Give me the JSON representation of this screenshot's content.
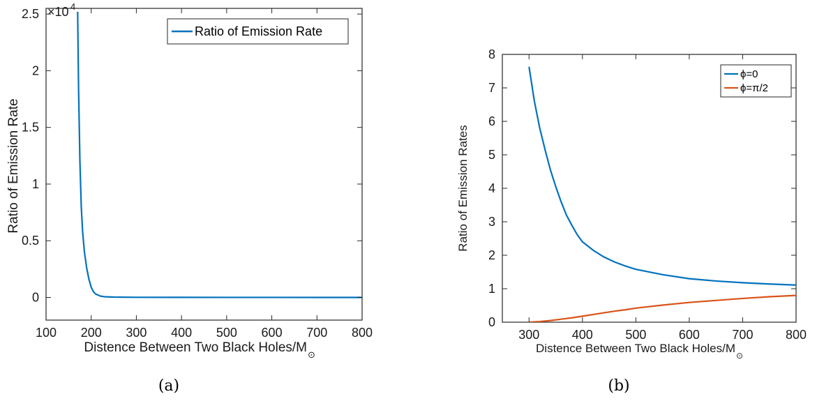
{
  "chart_data": [
    {
      "type": "line",
      "panel_caption": "(a)",
      "xlabel": "Distence Between Two Black Holes/M",
      "xlabel_sub": "⊙",
      "ylabel": "Ratio of Emission Rate",
      "exponent_label": "×10",
      "exponent_power": "4",
      "xlim": [
        100,
        800
      ],
      "ylim": [
        -0.2,
        2.55
      ],
      "xticks": [
        100,
        200,
        300,
        400,
        500,
        600,
        700,
        800
      ],
      "yticks": [
        0,
        0.5,
        1,
        1.5,
        2,
        2.5
      ],
      "xtick_labels": [
        "100",
        "200",
        "300",
        "400",
        "500",
        "600",
        "700",
        "800"
      ],
      "ytick_labels": [
        "0",
        "0.5",
        "1",
        "1.5",
        "2",
        "2.5"
      ],
      "legend_position": "top-right",
      "grid": false,
      "series": [
        {
          "name": "Ratio of Emission Rate",
          "color": "#0072BD",
          "x": [
            170,
            172,
            175,
            178,
            181,
            185,
            190,
            195,
            200,
            205,
            210,
            220,
            230,
            250,
            300,
            400,
            500,
            600,
            700,
            800
          ],
          "y": [
            2.52,
            1.85,
            1.2,
            0.8,
            0.58,
            0.4,
            0.26,
            0.16,
            0.09,
            0.05,
            0.03,
            0.012,
            0.006,
            0.003,
            0.001,
            0.0005,
            0.0003,
            0.0002,
            0.0001,
            0.0001
          ]
        }
      ]
    },
    {
      "type": "line",
      "panel_caption": "(b)",
      "xlabel": "Distence Between Two Black Holes/M",
      "xlabel_sub": "⊙",
      "ylabel": "Ratio of Emission Rates",
      "xlim": [
        250,
        800
      ],
      "ylim": [
        0,
        8
      ],
      "xticks": [
        300,
        400,
        500,
        600,
        700,
        800
      ],
      "yticks": [
        0,
        1,
        2,
        3,
        4,
        5,
        6,
        7,
        8
      ],
      "xtick_labels": [
        "300",
        "400",
        "500",
        "600",
        "700",
        "800"
      ],
      "ytick_labels": [
        "0",
        "1",
        "2",
        "3",
        "4",
        "5",
        "6",
        "7",
        "8"
      ],
      "legend_position": "top-right",
      "grid": false,
      "series": [
        {
          "name": "ϕ=0",
          "color": "#0072BD",
          "x": [
            300,
            310,
            320,
            330,
            340,
            350,
            360,
            370,
            380,
            390,
            400,
            420,
            440,
            460,
            480,
            500,
            550,
            600,
            650,
            700,
            750,
            800
          ],
          "y": [
            7.63,
            6.6,
            5.8,
            5.15,
            4.55,
            4.05,
            3.6,
            3.2,
            2.9,
            2.62,
            2.4,
            2.15,
            1.95,
            1.8,
            1.68,
            1.58,
            1.42,
            1.3,
            1.23,
            1.18,
            1.14,
            1.11
          ]
        },
        {
          "name": "ϕ=π/2",
          "color": "#D95319",
          "x": [
            300,
            320,
            340,
            360,
            380,
            400,
            420,
            440,
            460,
            480,
            500,
            550,
            600,
            650,
            700,
            750,
            800
          ],
          "y": [
            0.0,
            0.02,
            0.05,
            0.09,
            0.13,
            0.18,
            0.23,
            0.28,
            0.33,
            0.37,
            0.42,
            0.51,
            0.59,
            0.65,
            0.71,
            0.76,
            0.8
          ]
        }
      ]
    }
  ]
}
